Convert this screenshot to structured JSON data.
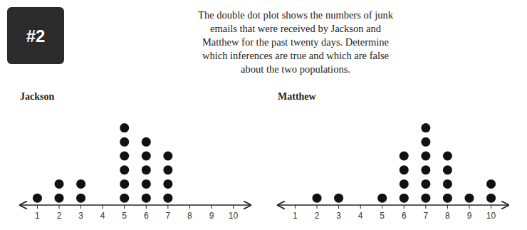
{
  "badge": "#2",
  "title": [
    "The double dot plot shows the numbers of junk",
    "emails that were received by Jackson and",
    "Matthew for the past twenty days. Determine",
    "which inferences are true and which are false",
    "about the two populations."
  ],
  "chart_data": [
    {
      "type": "dot",
      "title": "Jackson",
      "x": [
        1,
        2,
        3,
        4,
        5,
        6,
        7,
        8,
        9,
        10
      ],
      "values": [
        1,
        2,
        2,
        0,
        6,
        5,
        4,
        0,
        0,
        0
      ],
      "color": "#111111",
      "xlim": [
        0.2,
        10.8
      ],
      "xticks": [
        1,
        2,
        3,
        4,
        5,
        6,
        7,
        8,
        9,
        10
      ],
      "ylim": [
        0,
        7
      ],
      "tick_labels": "x",
      "grid": false
    },
    {
      "type": "dot",
      "title": "Matthew",
      "x": [
        1,
        2,
        3,
        4,
        5,
        6,
        7,
        8,
        9,
        10
      ],
      "values": [
        0,
        1,
        1,
        0,
        1,
        4,
        6,
        4,
        1,
        2
      ],
      "color": "#111111",
      "xlim": [
        0.2,
        10.8
      ],
      "xticks": [
        1,
        2,
        3,
        4,
        5,
        6,
        7,
        8,
        9,
        10
      ],
      "ylim": [
        0,
        7
      ],
      "tick_labels": "x",
      "grid": false
    }
  ]
}
